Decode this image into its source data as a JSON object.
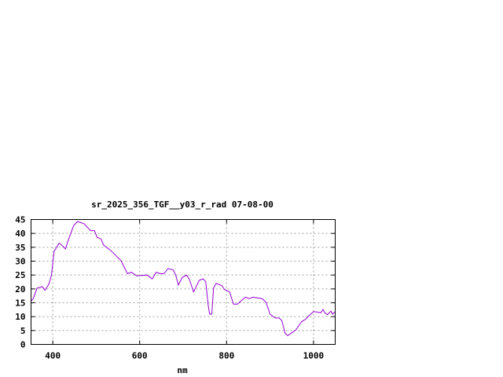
{
  "chart_data": {
    "type": "line",
    "title": "sr_2025_356_TGF__y03_r_rad 07-08-00",
    "xlabel": "nm",
    "ylabel": "",
    "xlim": [
      350,
      1050
    ],
    "ylim": [
      0,
      45
    ],
    "xticks": [
      400,
      600,
      800,
      1000
    ],
    "yticks": [
      0,
      5,
      10,
      15,
      20,
      25,
      30,
      35,
      40,
      45
    ],
    "grid": true,
    "legend": "none",
    "series": [
      {
        "color": "#9400d3",
        "x": [
          350,
          355,
          364,
          376,
          382,
          391,
          397,
          403,
          415,
          424,
          429,
          436,
          448,
          457,
          472,
          487,
          496,
          502,
          511,
          517,
          533,
          557,
          572,
          581,
          593,
          617,
          629,
          638,
          647,
          656,
          665,
          677,
          683,
          689,
          698,
          708,
          714,
          724,
          737,
          746,
          752,
          758,
          761,
          766,
          770,
          776,
          789,
          795,
          807,
          816,
          825,
          843,
          852,
          861,
          882,
          891,
          900,
          912,
          921,
          927,
          935,
          941,
          951,
          960,
          972,
          981,
          990,
          1000,
          1008,
          1017,
          1022,
          1026,
          1032,
          1040,
          1044,
          1049
        ],
        "y": [
          15.6,
          16.5,
          20.3,
          20.8,
          19.5,
          21.7,
          25,
          33.5,
          36.5,
          35.3,
          34.4,
          37.7,
          42.8,
          44.3,
          43.5,
          41,
          41,
          38.6,
          38,
          35.8,
          33.9,
          30.2,
          25.5,
          26,
          24.7,
          25,
          23.6,
          26,
          25.5,
          25.5,
          27.3,
          26.9,
          25,
          21.4,
          24.1,
          25,
          23.6,
          18.9,
          23.1,
          23.6,
          22.7,
          13.7,
          10.9,
          10.9,
          20.3,
          22,
          21.2,
          19.8,
          18.9,
          14.5,
          14.5,
          17,
          16.5,
          17,
          16.5,
          15.1,
          10.9,
          9.5,
          9.5,
          8.6,
          3.9,
          3.2,
          4.3,
          5.3,
          8.1,
          9,
          10.4,
          11.8,
          11.7,
          11.4,
          12.6,
          11.4,
          10.7,
          12,
          10.9,
          11.7
        ]
      }
    ]
  }
}
